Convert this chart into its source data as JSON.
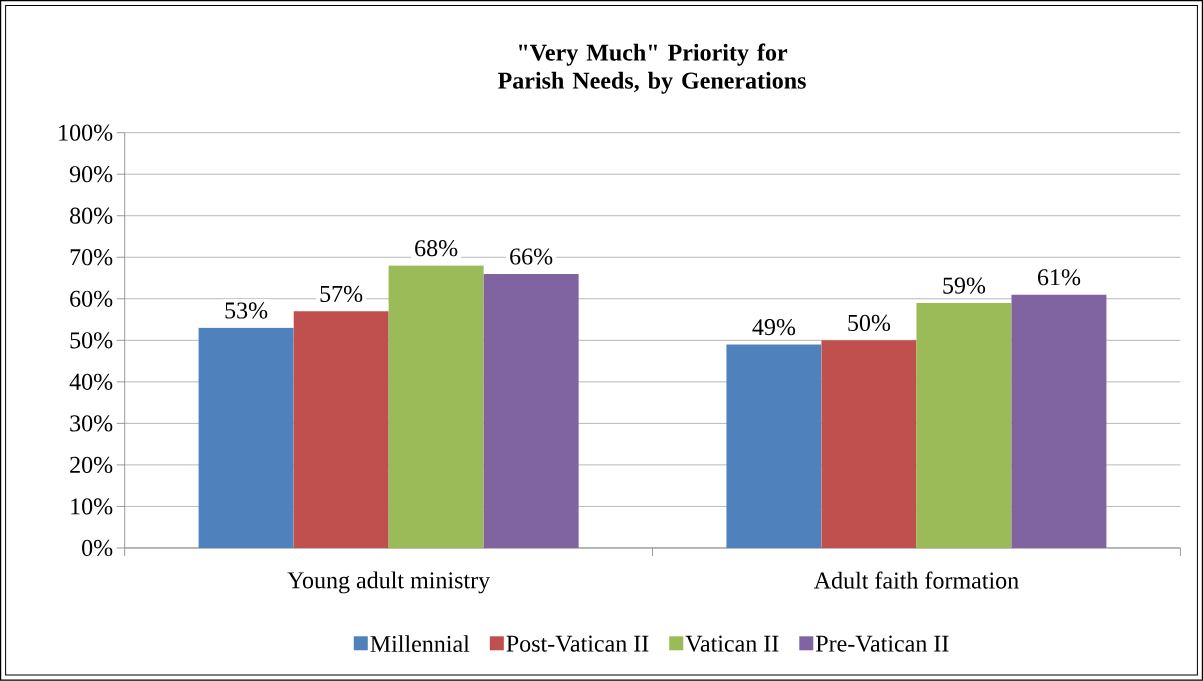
{
  "chart_data": {
    "type": "bar",
    "title": "\"Very Much\" Priority for Parish Needs, by Generations",
    "categories": [
      "Young adult ministry",
      "Adult faith formation"
    ],
    "series": [
      {
        "name": "Millennial",
        "color": "#4f81bd",
        "values": [
          53,
          49
        ],
        "value_labels": [
          "53%",
          "49%"
        ]
      },
      {
        "name": "Post-Vatican II",
        "color": "#c0504d",
        "values": [
          57,
          50
        ],
        "value_labels": [
          "57%",
          "50%"
        ]
      },
      {
        "name": "Vatican II",
        "color": "#9bbb59",
        "values": [
          68,
          59
        ],
        "value_labels": [
          "68%",
          "59%"
        ]
      },
      {
        "name": "Pre-Vatican II",
        "color": "#8064a2",
        "values": [
          66,
          61
        ],
        "value_labels": [
          "66%",
          "61%"
        ]
      }
    ],
    "ylim": [
      0,
      100
    ],
    "yticks": [
      {
        "value": 0,
        "label": "0%"
      },
      {
        "value": 10,
        "label": "10%"
      },
      {
        "value": 20,
        "label": "20%"
      },
      {
        "value": 30,
        "label": "30%"
      },
      {
        "value": 40,
        "label": "40%"
      },
      {
        "value": 50,
        "label": "50%"
      },
      {
        "value": 60,
        "label": "60%"
      },
      {
        "value": 70,
        "label": "70%"
      },
      {
        "value": 80,
        "label": "80%"
      },
      {
        "value": 90,
        "label": "90%"
      },
      {
        "value": 100,
        "label": "100%"
      }
    ],
    "grid": "y",
    "legend": "bottom"
  }
}
